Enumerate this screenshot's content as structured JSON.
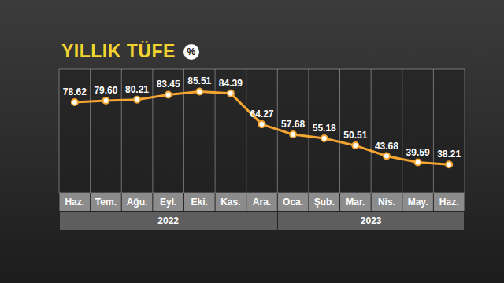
{
  "chart_data": {
    "type": "line",
    "title": "YILLIK TÜFE",
    "subtitle": "%",
    "categories": [
      "Haz.",
      "Tem.",
      "Ağu.",
      "Eyl.",
      "Eki.",
      "Kas.",
      "Ara.",
      "Oca.",
      "Şub.",
      "Mar.",
      "Nis.",
      "May.",
      "Haz."
    ],
    "x_groups": [
      {
        "label": "2022",
        "count": 7
      },
      {
        "label": "2023",
        "count": 6
      }
    ],
    "values": [
      78.62,
      79.6,
      80.21,
      83.45,
      85.51,
      84.39,
      64.27,
      57.68,
      55.18,
      50.51,
      43.68,
      39.59,
      38.21
    ],
    "value_labels": [
      "78.62",
      "79.60",
      "80.21",
      "83.45",
      "85.51",
      "84.39",
      "64.27",
      "57.68",
      "55.18",
      "50.51",
      "43.68",
      "39.59",
      "38.21"
    ],
    "color": "#f5a531",
    "ylim": [
      20,
      100
    ],
    "yticks": [
      20,
      30,
      40,
      50,
      60,
      70,
      80,
      90,
      100
    ],
    "grid": true,
    "data_labels": true,
    "tick_labels": "x",
    "marker": "circle"
  }
}
